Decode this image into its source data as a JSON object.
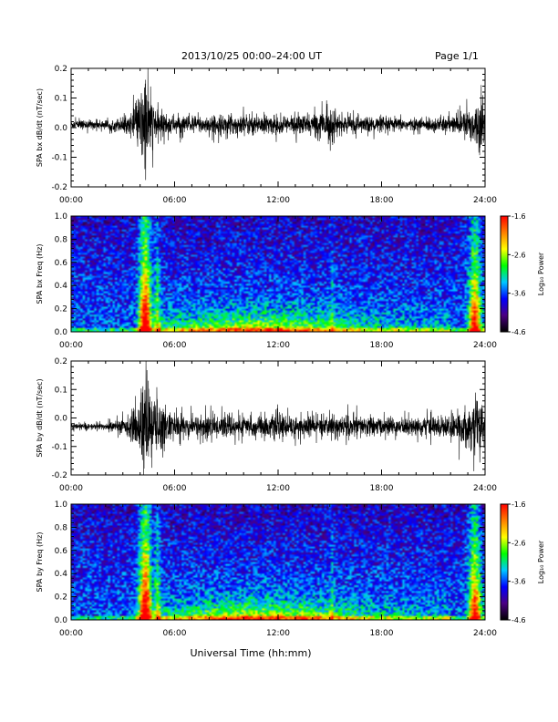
{
  "header": {
    "title": "2013/10/25   00:00–24:00 UT",
    "page": "Page 1/1"
  },
  "footer": {
    "xlabel": "Universal Time (hh:mm)"
  },
  "colors": {
    "trace": "#000000",
    "axis": "#000000",
    "background": "#ffffff"
  },
  "chart_data": [
    {
      "type": "line",
      "ylabel": "SPA bx dB/dt (nT/sec)",
      "xlim": [
        0,
        24
      ],
      "ylim": [
        -0.2,
        0.2
      ],
      "xticks": [
        "00:00",
        "06:00",
        "12:00",
        "18:00",
        "24:00"
      ],
      "yticks": [
        "-0.2",
        "-0.1",
        "0.0",
        "0.1",
        "0.2"
      ],
      "baseline": 0.01,
      "envelope": [
        [
          0,
          0.015
        ],
        [
          2,
          0.015
        ],
        [
          3.4,
          0.03
        ],
        [
          3.8,
          0.07
        ],
        [
          4.1,
          0.13
        ],
        [
          4.3,
          0.19
        ],
        [
          4.6,
          0.09
        ],
        [
          5,
          0.05
        ],
        [
          5.5,
          0.04
        ],
        [
          6,
          0.03
        ],
        [
          8,
          0.03
        ],
        [
          10,
          0.035
        ],
        [
          12,
          0.03
        ],
        [
          14,
          0.035
        ],
        [
          15.1,
          0.06
        ],
        [
          15.5,
          0.03
        ],
        [
          18,
          0.025
        ],
        [
          20,
          0.02
        ],
        [
          22.3,
          0.03
        ],
        [
          23,
          0.05
        ],
        [
          23.6,
          0.08
        ],
        [
          24,
          0.07
        ]
      ]
    },
    {
      "type": "heatmap",
      "ylabel": "SPA bx Freq (Hz)",
      "xlim": [
        0,
        24
      ],
      "ylim": [
        0,
        1.0
      ],
      "xticks": [
        "00:00",
        "06:00",
        "12:00",
        "18:00",
        "24:00"
      ],
      "yticks": [
        "0.0",
        "0.2",
        "0.4",
        "0.6",
        "0.8",
        "1.0"
      ],
      "colorbar_label": "Log₁₀ Power",
      "colorbar_ticks": [
        "-1.6",
        "-2.6",
        "-3.6",
        "-4.6"
      ],
      "clim": [
        -4.6,
        -1.6
      ],
      "colormap": [
        "#000000",
        "#4b0082",
        "#0000ff",
        "#00c8ff",
        "#00ff00",
        "#ffff00",
        "#ff8000",
        "#ff0000"
      ]
    },
    {
      "type": "line",
      "ylabel": "SPA by dB/dt (nT/sec)",
      "xlim": [
        0,
        24
      ],
      "ylim": [
        -0.2,
        0.2
      ],
      "xticks": [
        "00:00",
        "06:00",
        "12:00",
        "18:00",
        "24:00"
      ],
      "yticks": [
        "-0.2",
        "-0.1",
        "0.0",
        "0.1",
        "0.2"
      ],
      "baseline": -0.03,
      "envelope": [
        [
          0,
          0.01
        ],
        [
          2,
          0.012
        ],
        [
          3.2,
          0.03
        ],
        [
          3.8,
          0.07
        ],
        [
          4.1,
          0.13
        ],
        [
          4.3,
          0.2
        ],
        [
          4.7,
          0.1
        ],
        [
          5.1,
          0.1
        ],
        [
          5.6,
          0.05
        ],
        [
          6,
          0.04
        ],
        [
          8,
          0.04
        ],
        [
          10,
          0.035
        ],
        [
          12,
          0.04
        ],
        [
          14,
          0.035
        ],
        [
          16,
          0.04
        ],
        [
          18,
          0.03
        ],
        [
          20,
          0.03
        ],
        [
          22.3,
          0.04
        ],
        [
          23,
          0.07
        ],
        [
          23.5,
          0.1
        ],
        [
          24,
          0.08
        ]
      ]
    },
    {
      "type": "heatmap",
      "ylabel": "SPA by Freq (Hz)",
      "xlim": [
        0,
        24
      ],
      "ylim": [
        0,
        1.0
      ],
      "xticks": [
        "00:00",
        "06:00",
        "12:00",
        "18:00",
        "24:00"
      ],
      "yticks": [
        "0.0",
        "0.2",
        "0.4",
        "0.6",
        "0.8",
        "1.0"
      ],
      "colorbar_label": "Log₁₀ Power",
      "colorbar_ticks": [
        "-1.6",
        "-2.6",
        "-3.6",
        "-4.6"
      ],
      "clim": [
        -4.6,
        -1.6
      ],
      "colormap": [
        "#000000",
        "#4b0082",
        "#0000ff",
        "#00c8ff",
        "#00ff00",
        "#ffff00",
        "#ff8000",
        "#ff0000"
      ]
    }
  ]
}
